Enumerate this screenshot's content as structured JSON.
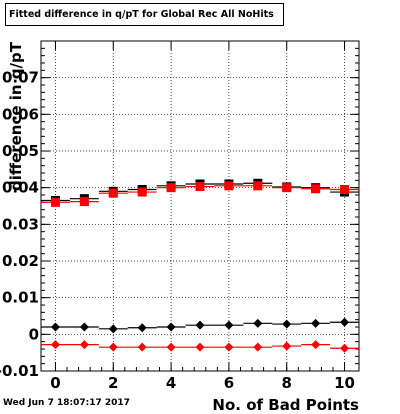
{
  "chart_data": {
    "type": "scatter",
    "title": "Fitted difference in q/pT  for Global Rec All NoHits",
    "xlabel": "No. of Bad Points",
    "ylabel": "difference in q/pT",
    "xlim": [
      -0.5,
      10.5
    ],
    "ylim": [
      -0.01,
      0.08
    ],
    "x_ticks": [
      "0",
      "2",
      "4",
      "6",
      "8",
      "10"
    ],
    "y_ticks": [
      "-0.01",
      "0",
      "0.01",
      "0.02",
      "0.03",
      "0.04",
      "0.05",
      "0.06",
      "0.07"
    ],
    "grid": true,
    "x": [
      0,
      1,
      2,
      3,
      4,
      5,
      6,
      7,
      8,
      9,
      10
    ],
    "series": [
      {
        "marker": "square",
        "color": "#000000",
        "values": [
          0.0365,
          0.037,
          0.039,
          0.0395,
          0.0405,
          0.041,
          0.041,
          0.0412,
          0.0402,
          0.04,
          0.0388
        ]
      },
      {
        "marker": "square",
        "color": "#ff0000",
        "values": [
          0.036,
          0.0362,
          0.0385,
          0.0388,
          0.04,
          0.0403,
          0.0405,
          0.0405,
          0.04,
          0.0397,
          0.0395
        ]
      },
      {
        "marker": "diamond",
        "color": "#000000",
        "values": [
          0.002,
          0.002,
          0.0015,
          0.0018,
          0.002,
          0.0025,
          0.0025,
          0.003,
          0.0028,
          0.003,
          0.0033
        ]
      },
      {
        "marker": "diamond",
        "color": "#ff0000",
        "values": [
          -0.0028,
          -0.0028,
          -0.0035,
          -0.0035,
          -0.0035,
          -0.0035,
          -0.0035,
          -0.0035,
          -0.0032,
          -0.0028,
          -0.0038
        ]
      }
    ]
  },
  "footer": {
    "timestamp": "Wed Jun  7 18:07:17 2017"
  }
}
